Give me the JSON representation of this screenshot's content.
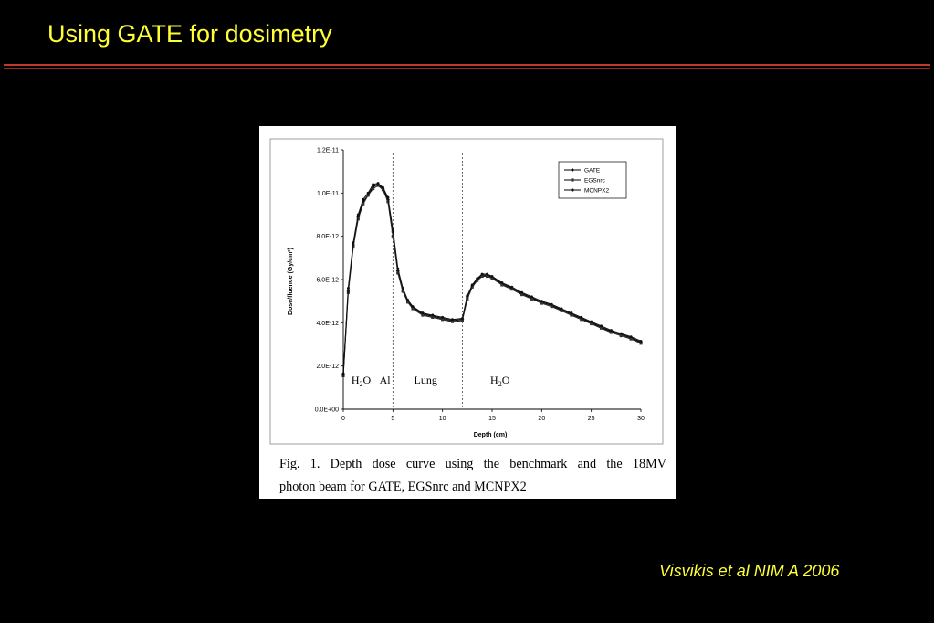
{
  "slide": {
    "title": "Using GATE for dosimetry",
    "citation": "Visvikis et al NIM A 2006",
    "colors": {
      "background": "#000000",
      "title": "#ffff33",
      "rule": "#c0392b"
    }
  },
  "figure": {
    "caption_line1": "Fig. 1. Depth dose curve using the benchmark and the 18MV",
    "caption_line2": "photon beam for GATE, EGSnrc and MCNPX2"
  },
  "chart_data": {
    "type": "line",
    "xlabel": "Depth (cm)",
    "ylabel": "Dose/fluence (Gy/cm²)",
    "xlim": [
      0,
      30
    ],
    "ylim": [
      0,
      1.2e-11
    ],
    "x_ticks": [
      0,
      5,
      10,
      15,
      20,
      25,
      30
    ],
    "x_tick_labels": [
      "0",
      "5",
      "10",
      "15",
      "20",
      "25",
      "30"
    ],
    "y_ticks": [
      0,
      2e-12,
      4e-12,
      6e-12,
      8e-12,
      1e-11,
      1.2e-11
    ],
    "y_tick_labels": [
      "0.0E+00",
      "2.0E-12",
      "4.0E-12",
      "6.0E-12",
      "8.0E-12",
      "1.0E-11",
      "1.2E-11"
    ],
    "grid": false,
    "legend_position": "top-right",
    "region_boundaries": [
      3,
      5,
      12
    ],
    "regions": [
      {
        "label": "H2O",
        "sub": "2",
        "x": 1.8
      },
      {
        "label": "Al",
        "x": 4.2
      },
      {
        "label": "Lung",
        "x": 8.3
      },
      {
        "label": "H2O",
        "sub": "2",
        "x": 15.8
      }
    ],
    "x": [
      0,
      0.5,
      1,
      1.5,
      2,
      2.5,
      3,
      3.5,
      4,
      4.5,
      5,
      5.5,
      6,
      6.5,
      7,
      8,
      9,
      10,
      11,
      12,
      12.5,
      13,
      13.5,
      14,
      14.5,
      15,
      16,
      17,
      18,
      19,
      20,
      21,
      22,
      23,
      24,
      25,
      26,
      27,
      28,
      29,
      30
    ],
    "series": [
      {
        "name": "GATE",
        "marker": "diamond",
        "values": [
          1.6e-12,
          5.5e-12,
          7.6e-12,
          8.9e-12,
          9.6e-12,
          9.9e-12,
          1.03e-11,
          1.04e-11,
          1.02e-11,
          9.7e-12,
          8.2e-12,
          6.4e-12,
          5.5e-12,
          5e-12,
          4.7e-12,
          4.4e-12,
          4.3e-12,
          4.2e-12,
          4.1e-12,
          4.15e-12,
          5.2e-12,
          5.7e-12,
          6e-12,
          6.2e-12,
          6.2e-12,
          6.1e-12,
          5.8e-12,
          5.6e-12,
          5.35e-12,
          5.15e-12,
          4.95e-12,
          4.8e-12,
          4.6e-12,
          4.4e-12,
          4.2e-12,
          4e-12,
          3.8e-12,
          3.6e-12,
          3.45e-12,
          3.3e-12,
          3.1e-12
        ]
      },
      {
        "name": "EGSnrc",
        "marker": "square",
        "values": [
          1.55e-12,
          5.4e-12,
          7.5e-12,
          8.8e-12,
          9.5e-12,
          9.9e-12,
          1.02e-11,
          1.035e-11,
          1.015e-11,
          9.6e-12,
          8e-12,
          6.3e-12,
          5.45e-12,
          4.95e-12,
          4.65e-12,
          4.35e-12,
          4.25e-12,
          4.15e-12,
          4.05e-12,
          4.1e-12,
          5.1e-12,
          5.65e-12,
          5.95e-12,
          6.15e-12,
          6.15e-12,
          6.05e-12,
          5.75e-12,
          5.55e-12,
          5.3e-12,
          5.1e-12,
          4.9e-12,
          4.75e-12,
          4.55e-12,
          4.35e-12,
          4.15e-12,
          3.95e-12,
          3.75e-12,
          3.55e-12,
          3.4e-12,
          3.25e-12,
          3.05e-12
        ]
      },
      {
        "name": "MCNPX2",
        "marker": "circle",
        "values": [
          1.65e-12,
          5.6e-12,
          7.7e-12,
          9e-12,
          9.7e-12,
          1e-11,
          1.04e-11,
          1.045e-11,
          1.025e-11,
          9.8e-12,
          8.3e-12,
          6.5e-12,
          5.6e-12,
          5.05e-12,
          4.75e-12,
          4.45e-12,
          4.35e-12,
          4.25e-12,
          4.15e-12,
          4.2e-12,
          5.25e-12,
          5.75e-12,
          6.05e-12,
          6.25e-12,
          6.25e-12,
          6.15e-12,
          5.85e-12,
          5.65e-12,
          5.4e-12,
          5.2e-12,
          5e-12,
          4.85e-12,
          4.65e-12,
          4.45e-12,
          4.25e-12,
          4.05e-12,
          3.85e-12,
          3.65e-12,
          3.5e-12,
          3.35e-12,
          3.15e-12
        ]
      }
    ]
  }
}
